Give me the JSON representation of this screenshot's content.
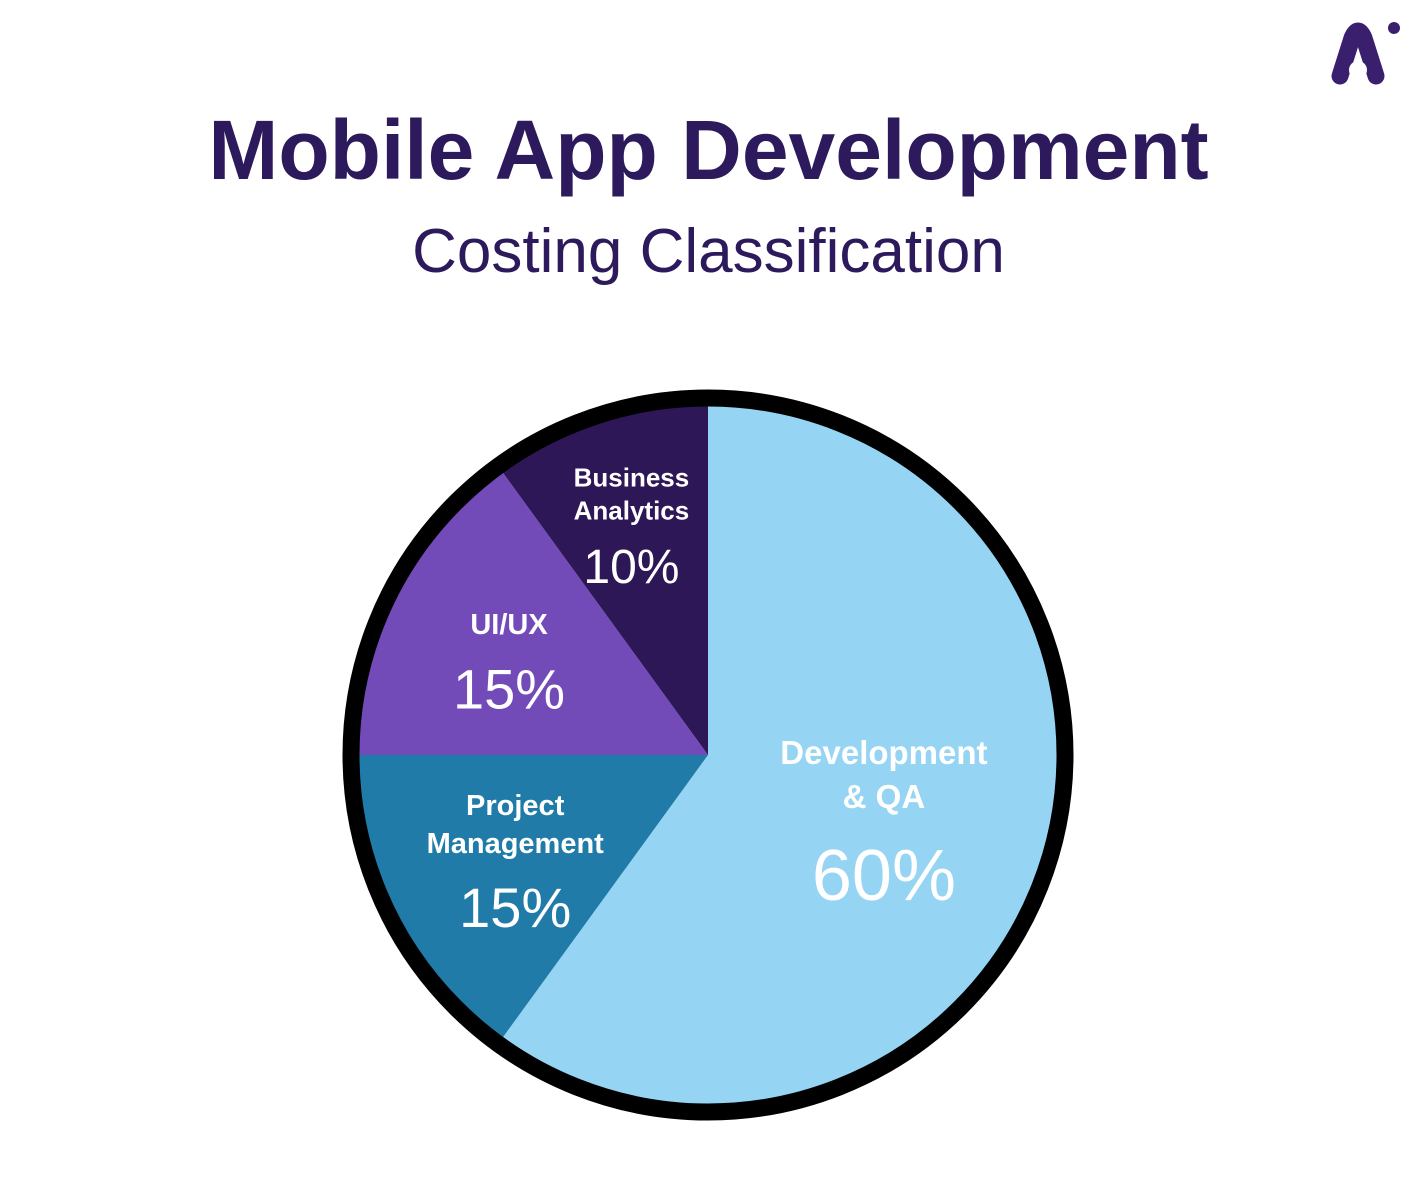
{
  "title": "Mobile App Development",
  "subtitle": "Costing Classification",
  "logo": {
    "icon": "brand-a-logo-icon",
    "color": "#3a1f6e"
  },
  "chart_data": {
    "type": "pie",
    "title": "Mobile App Development",
    "subtitle": "Costing Classification",
    "start_angle_deg": 0,
    "direction": "clockwise",
    "outline_color": "#000000",
    "slices": [
      {
        "name_lines": [
          "Development",
          "& QA"
        ],
        "label": "60%",
        "value": 60,
        "color": "#96d4f3"
      },
      {
        "name_lines": [
          "Project",
          "Management"
        ],
        "label": "15%",
        "value": 15,
        "color": "#207ba8"
      },
      {
        "name_lines": [
          "UI/UX"
        ],
        "label": "15%",
        "value": 15,
        "color": "#734bb9"
      },
      {
        "name_lines": [
          "Business",
          "Analytics"
        ],
        "label": "10%",
        "value": 10,
        "color": "#2e1756"
      }
    ]
  }
}
